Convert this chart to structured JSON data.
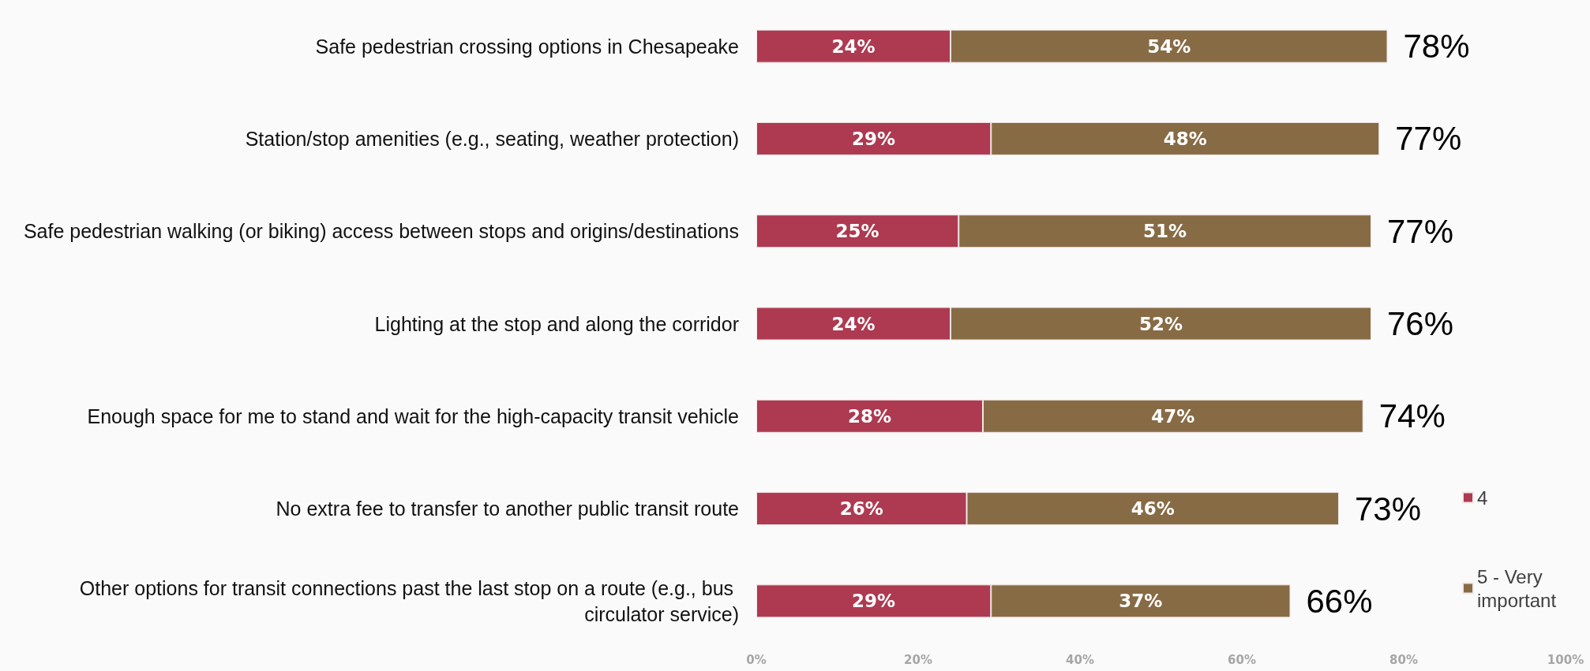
{
  "chart_data": {
    "type": "bar",
    "orientation": "horizontal",
    "stacked": true,
    "categories": [
      "Safe pedestrian crossing options in Chesapeake",
      "Station/stop amenities (e.g., seating, weather protection)",
      "Safe pedestrian walking (or biking) access between stops and origins/destinations",
      "Lighting at the stop and along the corridor",
      "Enough space for me to stand and wait for the high-capacity transit vehicle",
      "No extra fee to transfer to another public transit route",
      "Other options for transit connections past the last stop on a route (e.g., bus circulator service)"
    ],
    "series": [
      {
        "name": "4",
        "color": "#ad3a51",
        "values": [
          24,
          29,
          25,
          24,
          28,
          26,
          29
        ],
        "value_labels": [
          "24%",
          "29%",
          "25%",
          "24%",
          "28%",
          "26%",
          "29%"
        ]
      },
      {
        "name": "5 - Very important",
        "color": "#876b45",
        "values": [
          54,
          48,
          51,
          52,
          47,
          46,
          37
        ],
        "value_labels": [
          "54%",
          "48%",
          "51%",
          "52%",
          "47%",
          "46%",
          "37%"
        ]
      }
    ],
    "totals": [
      "78%",
      "77%",
      "77%",
      "76%",
      "74%",
      "73%",
      "66%"
    ],
    "xlim": [
      0,
      100
    ],
    "xticks": [
      {
        "value": 0,
        "label": "0%"
      },
      {
        "value": 20,
        "label": "20%"
      },
      {
        "value": 40,
        "label": "40%"
      },
      {
        "value": 60,
        "label": "60%"
      },
      {
        "value": 80,
        "label": "80%"
      },
      {
        "value": 100,
        "label": "100%"
      }
    ],
    "grid": false,
    "legend": "bottom right"
  }
}
